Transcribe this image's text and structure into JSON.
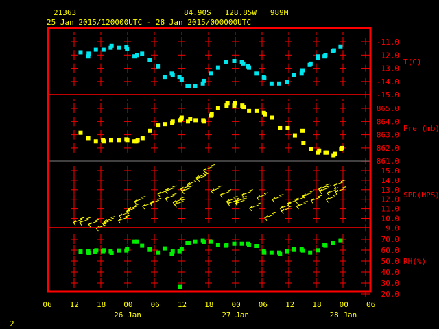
{
  "header": {
    "station": "21363",
    "location": "84.90S   128.85W   989M",
    "period": "25 Jan 2015/120000UTC - 28 Jan 2015/000000UTC"
  },
  "page_number": "2",
  "colors": {
    "frame": "#ff0000",
    "text": "#ffff00",
    "temperature": "#00e5ee",
    "pressure": "#ffff00",
    "wind": "#ffff00",
    "rh": "#00ee00",
    "separator": "#808080"
  },
  "chart_data": [
    {
      "type": "scatter",
      "ylabel": "T(C)",
      "ylim": [
        -15,
        -11
      ],
      "yticks": [
        "-11.0",
        "-12.0",
        "-13.0",
        "-14.0",
        "-15.0"
      ],
      "points": [
        [
          "2015-01-25T13:24",
          -11.8
        ],
        [
          "2015-01-25T15:06",
          -12.1
        ],
        [
          "2015-01-25T15:12",
          -11.9
        ],
        [
          "2015-01-25T16:48",
          -11.6
        ],
        [
          "2015-01-25T18:30",
          -11.6
        ],
        [
          "2015-01-25T20:06",
          -11.45
        ],
        [
          "2015-01-25T20:18",
          -11.3
        ],
        [
          "2015-01-25T21:54",
          -11.45
        ],
        [
          "2015-01-25T23:36",
          -11.4
        ],
        [
          "2015-01-25T23:45",
          -11.55
        ],
        [
          "2015-01-26T01:24",
          -12.1
        ],
        [
          "2015-01-26T02:00",
          -12.0
        ],
        [
          "2015-01-26T03:06",
          -11.9
        ],
        [
          "2015-01-26T04:48",
          -12.35
        ],
        [
          "2015-01-26T06:36",
          -12.85
        ],
        [
          "2015-01-26T08:06",
          -13.65
        ],
        [
          "2015-01-26T09:42",
          -13.4
        ],
        [
          "2015-01-26T09:54",
          -13.5
        ],
        [
          "2015-01-26T11:24",
          -13.65
        ],
        [
          "2015-01-26T11:54",
          -13.85
        ],
        [
          "2015-01-26T13:12",
          -14.35
        ],
        [
          "2015-01-26T13:36",
          -14.35
        ],
        [
          "2015-01-26T14:54",
          -14.35
        ],
        [
          "2015-01-26T16:36",
          -14.15
        ],
        [
          "2015-01-26T16:48",
          -13.95
        ],
        [
          "2015-01-26T18:24",
          -13.4
        ],
        [
          "2015-01-26T20:00",
          -12.95
        ],
        [
          "2015-01-26T21:48",
          -12.55
        ],
        [
          "2015-01-26T23:36",
          -12.45
        ],
        [
          "2015-01-27T01:18",
          -12.55
        ],
        [
          "2015-01-27T01:36",
          -12.65
        ],
        [
          "2015-01-27T02:42",
          -12.85
        ],
        [
          "2015-01-27T02:54",
          -12.95
        ],
        [
          "2015-01-27T04:36",
          -13.4
        ],
        [
          "2015-01-27T06:12",
          -13.65
        ],
        [
          "2015-01-27T06:18",
          -13.75
        ],
        [
          "2015-01-27T07:54",
          -14.15
        ],
        [
          "2015-01-27T09:36",
          -14.15
        ],
        [
          "2015-01-27T11:18",
          -14.05
        ],
        [
          "2015-01-27T12:54",
          -13.5
        ],
        [
          "2015-01-27T14:36",
          -13.4
        ],
        [
          "2015-01-27T14:48",
          -13.15
        ],
        [
          "2015-01-27T16:24",
          -12.75
        ],
        [
          "2015-01-27T16:36",
          -12.65
        ],
        [
          "2015-01-27T18:12",
          -12.2
        ],
        [
          "2015-01-27T18:18",
          -12.1
        ],
        [
          "2015-01-27T19:42",
          -12.1
        ],
        [
          "2015-01-27T19:54",
          -12.0
        ],
        [
          "2015-01-27T21:30",
          -11.7
        ],
        [
          "2015-01-27T21:48",
          -11.65
        ],
        [
          "2015-01-27T23:15",
          -11.35
        ]
      ]
    },
    {
      "type": "scatter",
      "ylabel": "Pre (mb)",
      "ylim": [
        861,
        865
      ],
      "yticks": [
        "865.0",
        "864.0",
        "863.0",
        "862.0",
        "861.0"
      ],
      "points": [
        [
          "2015-01-25T13:24",
          863.15
        ],
        [
          "2015-01-25T15:06",
          862.75
        ],
        [
          "2015-01-25T16:48",
          862.5
        ],
        [
          "2015-01-25T18:24",
          862.6
        ],
        [
          "2015-01-25T18:36",
          862.5
        ],
        [
          "2015-01-25T20:12",
          862.6
        ],
        [
          "2015-01-25T21:54",
          862.6
        ],
        [
          "2015-01-25T23:36",
          862.65
        ],
        [
          "2015-01-25T23:48",
          862.6
        ],
        [
          "2015-01-26T01:24",
          862.5
        ],
        [
          "2015-01-26T01:48",
          862.5
        ],
        [
          "2015-01-26T02:06",
          862.6
        ],
        [
          "2015-01-26T03:12",
          862.75
        ],
        [
          "2015-01-26T04:54",
          863.3
        ],
        [
          "2015-01-26T06:36",
          863.7
        ],
        [
          "2015-01-26T08:12",
          863.8
        ],
        [
          "2015-01-26T09:48",
          863.9
        ],
        [
          "2015-01-26T09:54",
          864.0
        ],
        [
          "2015-01-26T11:30",
          864.1
        ],
        [
          "2015-01-26T11:48",
          864.2
        ],
        [
          "2015-01-26T11:54",
          864.3
        ],
        [
          "2015-01-26T13:18",
          864.0
        ],
        [
          "2015-01-26T13:48",
          864.2
        ],
        [
          "2015-01-26T15:00",
          864.1
        ],
        [
          "2015-01-26T16:42",
          864.1
        ],
        [
          "2015-01-26T16:54",
          864.0
        ],
        [
          "2015-01-26T18:24",
          864.45
        ],
        [
          "2015-01-26T18:36",
          864.55
        ],
        [
          "2015-01-26T20:00",
          865.0
        ],
        [
          "2015-01-26T21:54",
          865.2
        ],
        [
          "2015-01-26T22:06",
          865.4
        ],
        [
          "2015-01-26T23:36",
          865.2
        ],
        [
          "2015-01-26T23:48",
          865.4
        ],
        [
          "2015-01-27T01:24",
          865.2
        ],
        [
          "2015-01-27T01:42",
          865.1
        ],
        [
          "2015-01-27T02:54",
          864.8
        ],
        [
          "2015-01-27T04:42",
          864.8
        ],
        [
          "2015-01-27T06:12",
          864.65
        ],
        [
          "2015-01-27T06:24",
          864.55
        ],
        [
          "2015-01-27T08:00",
          864.3
        ],
        [
          "2015-01-27T09:48",
          863.5
        ],
        [
          "2015-01-27T11:30",
          863.5
        ],
        [
          "2015-01-27T13:06",
          862.95
        ],
        [
          "2015-01-27T14:48",
          863.3
        ],
        [
          "2015-01-27T15:00",
          862.4
        ],
        [
          "2015-01-27T16:42",
          861.9
        ],
        [
          "2015-01-27T18:18",
          861.65
        ],
        [
          "2015-01-27T18:30",
          861.8
        ],
        [
          "2015-01-27T19:54",
          861.65
        ],
        [
          "2015-01-27T20:12",
          861.65
        ],
        [
          "2015-01-27T21:42",
          861.45
        ],
        [
          "2015-01-27T22:00",
          861.55
        ],
        [
          "2015-01-27T23:24",
          861.9
        ],
        [
          "2015-01-27T23:36",
          862.0
        ]
      ]
    },
    {
      "type": "wind-arrows",
      "ylabel": "SPD(MPS)",
      "ylim": [
        9,
        15
      ],
      "yticks": [
        "15.0",
        "14.0",
        "13.0",
        "12.0",
        "11.0",
        "10.0",
        "9.0"
      ],
      "wind_from_deg": 70,
      "points": [
        [
          "2015-01-25T13:48",
          9.9
        ],
        [
          "2015-01-25T15:12",
          9.9
        ],
        [
          "2015-01-25T17:12",
          9.7
        ],
        [
          "2015-01-25T18:54",
          9.3
        ],
        [
          "2015-01-25T20:18",
          9.8
        ],
        [
          "2015-01-25T20:36",
          10.0
        ],
        [
          "2015-01-25T23:48",
          10.1
        ],
        [
          "2015-01-26T00:00",
          10.6
        ],
        [
          "2015-01-26T01:42",
          11.1
        ],
        [
          "2015-01-26T02:00",
          11.3
        ],
        [
          "2015-01-26T03:24",
          12.1
        ],
        [
          "2015-01-26T05:12",
          11.6
        ],
        [
          "2015-01-26T06:54",
          11.9
        ],
        [
          "2015-01-26T08:36",
          12.9
        ],
        [
          "2015-01-26T10:18",
          13.2
        ],
        [
          "2015-01-26T10:18",
          12.4
        ],
        [
          "2015-01-26T12:00",
          12.0
        ],
        [
          "2015-01-26T12:18",
          11.8
        ],
        [
          "2015-01-26T13:42",
          13.4
        ],
        [
          "2015-01-26T14:00",
          13.2
        ],
        [
          "2015-01-26T15:06",
          13.9
        ],
        [
          "2015-01-26T17:06",
          14.6
        ],
        [
          "2015-01-26T17:24",
          14.5
        ],
        [
          "2015-01-26T18:48",
          15.4
        ],
        [
          "2015-01-26T20:30",
          13.2
        ],
        [
          "2015-01-26T22:30",
          12.8
        ],
        [
          "2015-01-26T23:54",
          12.1
        ],
        [
          "2015-01-27T00:12",
          11.9
        ],
        [
          "2015-01-27T01:54",
          12.1
        ],
        [
          "2015-01-27T01:54",
          11.9
        ],
        [
          "2015-01-27T03:18",
          12.8
        ],
        [
          "2015-01-27T05:00",
          11.4
        ],
        [
          "2015-01-27T06:42",
          12.5
        ],
        [
          "2015-01-27T08:24",
          10.4
        ],
        [
          "2015-01-27T10:06",
          12.3
        ],
        [
          "2015-01-27T11:48",
          11.4
        ],
        [
          "2015-01-27T12:06",
          11.1
        ],
        [
          "2015-01-27T13:30",
          11.9
        ],
        [
          "2015-01-27T15:12",
          12.2
        ],
        [
          "2015-01-27T15:30",
          11.6
        ],
        [
          "2015-01-27T16:54",
          12.7
        ],
        [
          "2015-01-27T18:42",
          12.2
        ],
        [
          "2015-01-27T20:24",
          13.4
        ],
        [
          "2015-01-27T20:36",
          13.2
        ],
        [
          "2015-01-27T22:06",
          12.3
        ],
        [
          "2015-01-27T22:18",
          13.0
        ],
        [
          "2015-01-27T23:48",
          13.8
        ],
        [
          "2015-01-28T00:06",
          13.1
        ]
      ]
    },
    {
      "type": "scatter",
      "ylabel": "RH(%)",
      "ylim": [
        20,
        70
      ],
      "yticks": [
        "70.0",
        "60.0",
        "50.0",
        "40.0",
        "30.0",
        "20.0"
      ],
      "points": [
        [
          "2015-01-25T13:24",
          58.75
        ],
        [
          "2015-01-25T15:06",
          58.75
        ],
        [
          "2015-01-25T15:12",
          57.5
        ],
        [
          "2015-01-25T16:42",
          58.75
        ],
        [
          "2015-01-25T16:54",
          59.8
        ],
        [
          "2015-01-25T18:24",
          59
        ],
        [
          "2015-01-25T18:36",
          59.8
        ],
        [
          "2015-01-25T20:06",
          59
        ],
        [
          "2015-01-25T20:18",
          57.5
        ],
        [
          "2015-01-25T21:54",
          59.6
        ],
        [
          "2015-01-25T23:36",
          59.6
        ],
        [
          "2015-01-25T23:45",
          61.25
        ],
        [
          "2015-01-26T01:24",
          67.7
        ],
        [
          "2015-01-26T02:00",
          67.7
        ],
        [
          "2015-01-26T03:06",
          64
        ],
        [
          "2015-01-26T04:48",
          60.8
        ],
        [
          "2015-01-26T06:36",
          57.7
        ],
        [
          "2015-01-26T08:06",
          61.5
        ],
        [
          "2015-01-26T09:42",
          56.5
        ],
        [
          "2015-01-26T09:54",
          59
        ],
        [
          "2015-01-26T11:24",
          59
        ],
        [
          "2015-01-26T11:30",
          26.5
        ],
        [
          "2015-01-26T11:54",
          61.25
        ],
        [
          "2015-01-26T13:12",
          66.5
        ],
        [
          "2015-01-26T13:36",
          66.5
        ],
        [
          "2015-01-26T14:54",
          67.7
        ],
        [
          "2015-01-26T16:36",
          69
        ],
        [
          "2015-01-26T16:48",
          67.5
        ],
        [
          "2015-01-26T18:24",
          67.7
        ],
        [
          "2015-01-26T20:00",
          64.6
        ],
        [
          "2015-01-26T21:48",
          64
        ],
        [
          "2015-01-26T21:54",
          64.6
        ],
        [
          "2015-01-26T23:36",
          65.8
        ],
        [
          "2015-01-27T01:18",
          65.8
        ],
        [
          "2015-01-27T02:42",
          65.8
        ],
        [
          "2015-01-27T02:54",
          64.4
        ],
        [
          "2015-01-27T04:36",
          63.75
        ],
        [
          "2015-01-27T06:12",
          59
        ],
        [
          "2015-01-27T06:18",
          57.7
        ],
        [
          "2015-01-27T07:54",
          57.7
        ],
        [
          "2015-01-27T09:36",
          57.7
        ],
        [
          "2015-01-27T09:48",
          56.5
        ],
        [
          "2015-01-27T11:18",
          59
        ],
        [
          "2015-01-27T12:54",
          60.8
        ],
        [
          "2015-01-27T14:36",
          60.8
        ],
        [
          "2015-01-27T14:54",
          59.6
        ],
        [
          "2015-01-27T16:30",
          57.7
        ],
        [
          "2015-01-27T18:12",
          59.8
        ],
        [
          "2015-01-27T19:42",
          64.6
        ],
        [
          "2015-01-27T19:54",
          64
        ],
        [
          "2015-01-27T21:36",
          66.5
        ],
        [
          "2015-01-27T23:15",
          69
        ]
      ]
    }
  ],
  "xaxis": {
    "hour_labels": [
      "06",
      "12",
      "18",
      "00",
      "06",
      "12",
      "18",
      "00",
      "06",
      "12",
      "18",
      "00",
      "06"
    ],
    "date_labels": [
      "26 Jan",
      "27 Jan",
      "28 Jan"
    ]
  }
}
